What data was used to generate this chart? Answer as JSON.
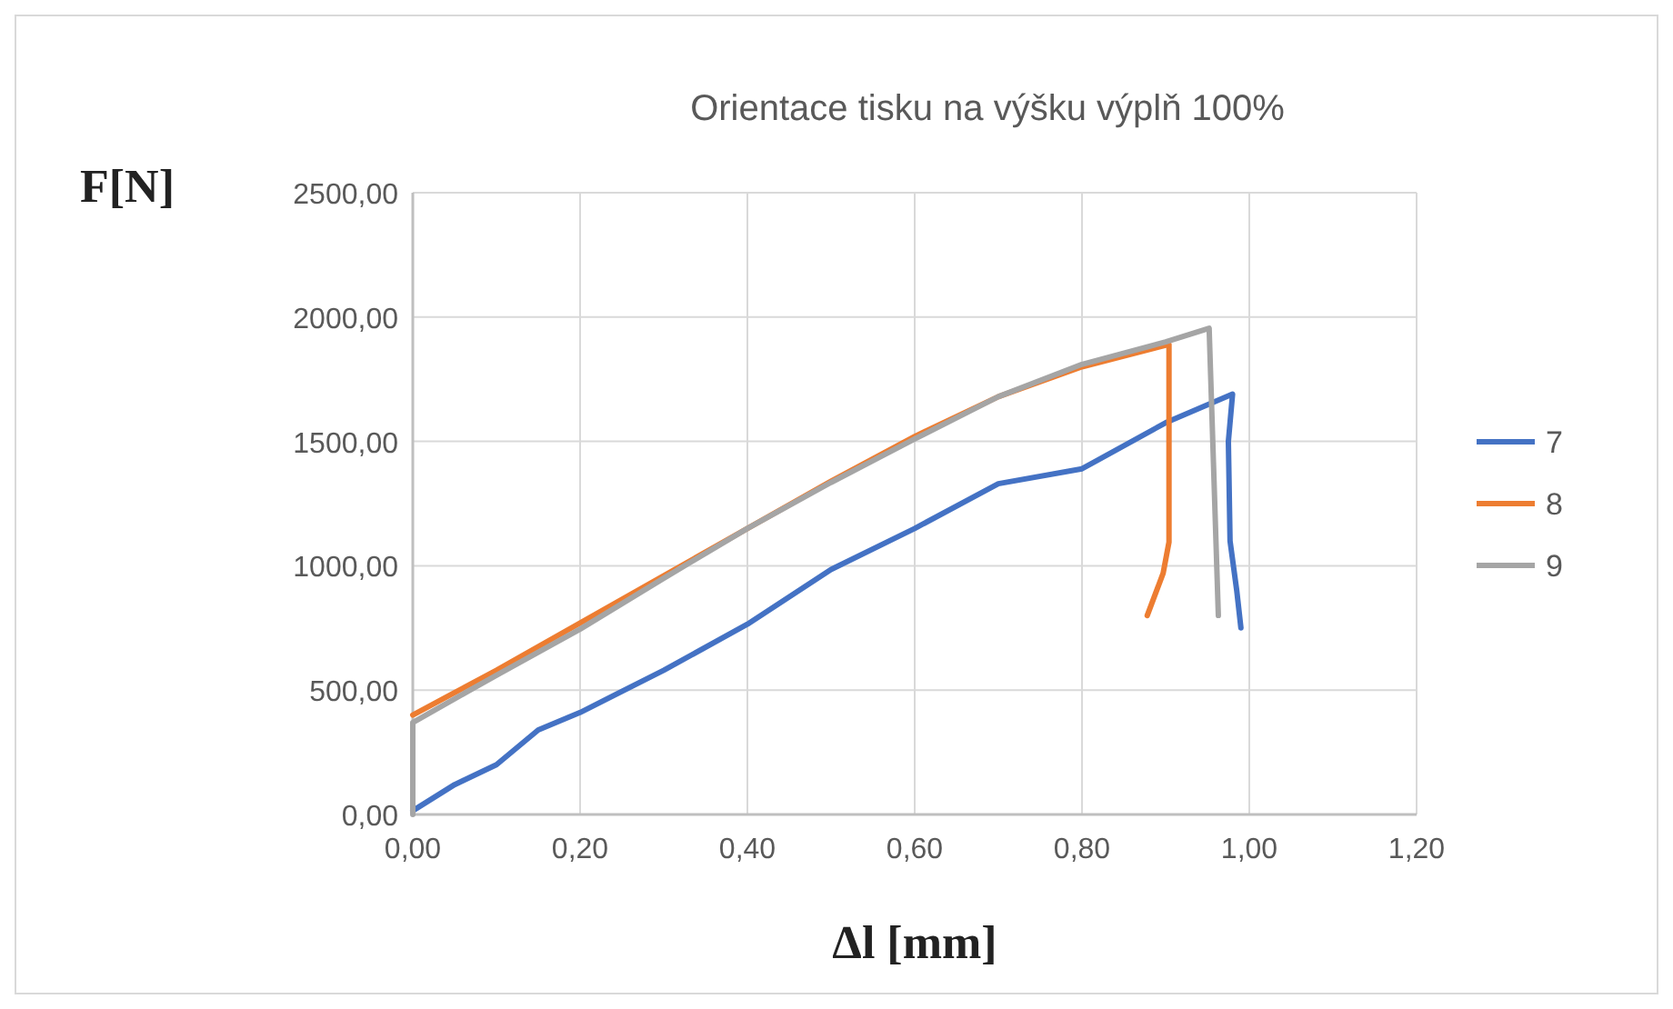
{
  "chart_data": {
    "type": "line",
    "title": "Orientace tisku na výšku výplň 100%",
    "xlabel": "Δl [mm]",
    "ylabel": "F[N]",
    "xlim": [
      0,
      1.2
    ],
    "ylim": [
      0,
      2500
    ],
    "xticks": [
      {
        "value": 0,
        "label": "0,00"
      },
      {
        "value": 0.2,
        "label": "0,20"
      },
      {
        "value": 0.4,
        "label": "0,40"
      },
      {
        "value": 0.6,
        "label": "0,60"
      },
      {
        "value": 0.8,
        "label": "0,80"
      },
      {
        "value": 1,
        "label": "1,00"
      },
      {
        "value": 1.2,
        "label": "1,20"
      }
    ],
    "yticks": [
      {
        "value": 0,
        "label": "0,00"
      },
      {
        "value": 500,
        "label": "500,00"
      },
      {
        "value": 1000,
        "label": "1000,00"
      },
      {
        "value": 1500,
        "label": "1500,00"
      },
      {
        "value": 2000,
        "label": "2000,00"
      },
      {
        "value": 2500,
        "label": "2500,00"
      }
    ],
    "grid": true,
    "legend": "right",
    "marker": "none",
    "line_style": "solid",
    "series": [
      {
        "name": "7",
        "color": "#4472c4",
        "x": [
          0,
          0.05,
          0.1,
          0.15,
          0.2,
          0.3,
          0.4,
          0.5,
          0.6,
          0.7,
          0.8,
          0.9,
          0.98,
          0.975,
          0.977,
          0.985,
          0.99
        ],
        "values": [
          15,
          120,
          200,
          340,
          410,
          580,
          765,
          985,
          1150,
          1330,
          1390,
          1575,
          1690,
          1500,
          1100,
          900,
          750
        ]
      },
      {
        "name": "8",
        "color": "#ed7d31",
        "x": [
          0,
          0.1,
          0.2,
          0.3,
          0.4,
          0.5,
          0.6,
          0.7,
          0.8,
          0.904,
          0.904,
          0.897,
          0.878
        ],
        "values": [
          400,
          580,
          770,
          960,
          1150,
          1340,
          1520,
          1680,
          1800,
          1890,
          1095,
          970,
          800
        ]
      },
      {
        "name": "9",
        "color": "#a5a5a5",
        "x": [
          0,
          0,
          0.1,
          0.2,
          0.3,
          0.4,
          0.5,
          0.6,
          0.7,
          0.8,
          0.9,
          0.952,
          0.963
        ],
        "values": [
          0,
          370,
          560,
          745,
          950,
          1150,
          1335,
          1510,
          1680,
          1810,
          1900,
          1955,
          800
        ]
      }
    ]
  }
}
